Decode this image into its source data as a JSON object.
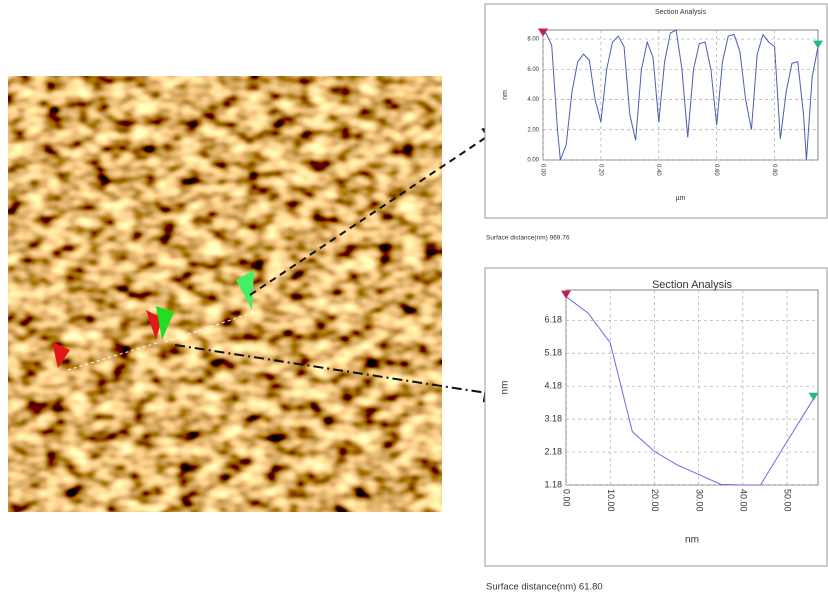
{
  "chart_data": [
    {
      "type": "line",
      "title": "Section Analysis",
      "x_label": "µm",
      "y_label": "nm",
      "x": [
        0,
        0.01,
        0.03,
        0.05,
        0.06,
        0.08,
        0.1,
        0.12,
        0.14,
        0.16,
        0.18,
        0.2,
        0.22,
        0.24,
        0.26,
        0.28,
        0.3,
        0.32,
        0.34,
        0.36,
        0.38,
        0.4,
        0.42,
        0.44,
        0.46,
        0.48,
        0.5,
        0.52,
        0.54,
        0.56,
        0.58,
        0.6,
        0.62,
        0.64,
        0.66,
        0.68,
        0.7,
        0.72,
        0.74,
        0.76,
        0.78,
        0.8,
        0.82,
        0.84,
        0.86,
        0.88,
        0.9,
        0.91,
        0.93,
        0.95
      ],
      "values": [
        8.3,
        8.4,
        7.6,
        2.0,
        0.0,
        1.0,
        4.5,
        6.5,
        7.0,
        6.6,
        4.0,
        2.5,
        6.0,
        7.8,
        8.2,
        7.5,
        3.0,
        1.3,
        6.0,
        7.8,
        6.8,
        2.5,
        6.5,
        8.4,
        8.6,
        6.0,
        1.5,
        6.0,
        7.7,
        7.8,
        6.0,
        2.3,
        6.5,
        8.2,
        8.3,
        7.2,
        4.0,
        2.0,
        7.0,
        8.3,
        7.8,
        7.5,
        1.4,
        4.5,
        6.4,
        6.5,
        3.0,
        0.0,
        5.5,
        7.5
      ],
      "color": "#4a5fb0",
      "xlim": [
        0,
        0.95
      ],
      "ylim": [
        0,
        8.6
      ],
      "xticks": [
        {
          "value": 0,
          "label": "0.00"
        },
        {
          "value": 0.2,
          "label": "0.20"
        },
        {
          "value": 0.4,
          "label": "0.40"
        },
        {
          "value": 0.6,
          "label": "0.60"
        },
        {
          "value": 0.8,
          "label": "0.80"
        }
      ],
      "yticks": [
        {
          "value": 0,
          "label": "0.00"
        },
        {
          "value": 2,
          "label": "2.00"
        },
        {
          "value": 4,
          "label": "4.00"
        },
        {
          "value": 6,
          "label": "6.00"
        },
        {
          "value": 8,
          "label": "8.00"
        }
      ],
      "grid": true,
      "annotation": "Surface distance(nm) 969.76"
    },
    {
      "type": "line",
      "title": "Section Analysis",
      "x_label": "nm",
      "y_label": "nm",
      "x": [
        0,
        5,
        10,
        15,
        20,
        25,
        30,
        35,
        40,
        44,
        50,
        56
      ],
      "values": [
        6.9,
        6.4,
        5.5,
        2.8,
        2.2,
        1.8,
        1.5,
        1.2,
        1.18,
        1.18,
        2.5,
        3.8
      ],
      "color": "#6a6ae8",
      "xlim": [
        0,
        57
      ],
      "ylim": [
        1.18,
        7.1
      ],
      "xticks": [
        {
          "value": 0,
          "label": "0.00"
        },
        {
          "value": 10,
          "label": "10.00"
        },
        {
          "value": 20,
          "label": "20.00"
        },
        {
          "value": 30,
          "label": "30.00"
        },
        {
          "value": 40,
          "label": "40.00"
        },
        {
          "value": 50,
          "label": "50.00"
        }
      ],
      "yticks": [
        1.18,
        2.18,
        3.18,
        4.18,
        5.18,
        6.18
      ],
      "grid": true,
      "annotation": "Surface distance(nm) 61.80"
    }
  ]
}
